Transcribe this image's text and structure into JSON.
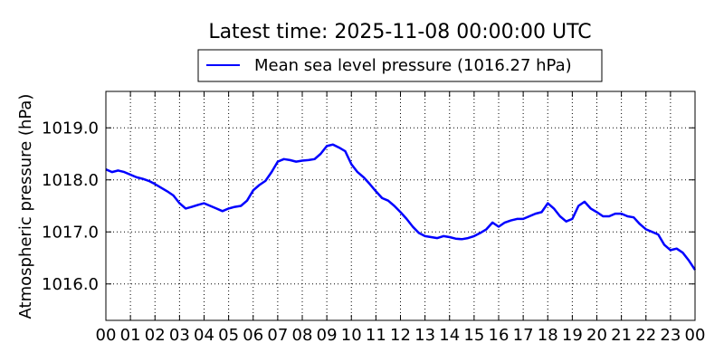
{
  "chart_data": {
    "type": "line",
    "title": "Latest time: 2025-11-08 00:00:00 UTC",
    "ylabel": "Atmospheric pressure (hPa)",
    "xlabel": "",
    "x_unit": "hour (UTC)",
    "xlim": [
      0,
      24
    ],
    "ylim": [
      1015.3,
      1019.7
    ],
    "grid": true,
    "grid_style": "dotted",
    "legend_position": "top-center",
    "x_ticks": [
      "00",
      "01",
      "02",
      "03",
      "04",
      "05",
      "06",
      "07",
      "08",
      "09",
      "10",
      "11",
      "12",
      "13",
      "14",
      "15",
      "16",
      "17",
      "18",
      "19",
      "20",
      "21",
      "22",
      "23",
      "00"
    ],
    "y_ticks": [
      {
        "value": 1016.0,
        "label": "1016.0"
      },
      {
        "value": 1017.0,
        "label": "1017.0"
      },
      {
        "value": 1018.0,
        "label": "1018.0"
      },
      {
        "value": 1019.0,
        "label": "1019.0"
      }
    ],
    "series": [
      {
        "name": "Mean sea level pressure (1016.27 hPa)",
        "color": "#0000ff",
        "x": [
          0,
          0.25,
          0.5,
          0.75,
          1,
          1.25,
          1.5,
          1.75,
          2,
          2.25,
          2.5,
          2.75,
          3,
          3.25,
          3.5,
          3.75,
          4,
          4.25,
          4.5,
          4.75,
          5,
          5.25,
          5.5,
          5.75,
          6,
          6.25,
          6.5,
          6.75,
          7,
          7.25,
          7.5,
          7.75,
          8,
          8.25,
          8.5,
          8.75,
          9,
          9.25,
          9.5,
          9.75,
          10,
          10.25,
          10.5,
          10.75,
          11,
          11.25,
          11.5,
          11.75,
          12,
          12.25,
          12.5,
          12.75,
          13,
          13.25,
          13.5,
          13.75,
          14,
          14.25,
          14.5,
          14.75,
          15,
          15.25,
          15.5,
          15.75,
          16,
          16.25,
          16.5,
          16.75,
          17,
          17.25,
          17.5,
          17.75,
          18,
          18.25,
          18.5,
          18.75,
          19,
          19.25,
          19.5,
          19.75,
          20,
          20.25,
          20.5,
          20.75,
          21,
          21.25,
          21.5,
          21.75,
          22,
          22.25,
          22.5,
          22.75,
          23,
          23.25,
          23.5,
          23.75,
          24
        ],
        "values": [
          1018.2,
          1018.15,
          1018.18,
          1018.15,
          1018.1,
          1018.05,
          1018.02,
          1017.98,
          1017.92,
          1017.85,
          1017.78,
          1017.7,
          1017.55,
          1017.45,
          1017.48,
          1017.52,
          1017.55,
          1017.5,
          1017.45,
          1017.4,
          1017.45,
          1017.48,
          1017.5,
          1017.6,
          1017.8,
          1017.9,
          1017.98,
          1018.15,
          1018.35,
          1018.4,
          1018.38,
          1018.35,
          1018.37,
          1018.38,
          1018.4,
          1018.5,
          1018.65,
          1018.68,
          1018.62,
          1018.55,
          1018.3,
          1018.15,
          1018.05,
          1017.92,
          1017.78,
          1017.65,
          1017.6,
          1017.5,
          1017.38,
          1017.25,
          1017.1,
          1016.98,
          1016.92,
          1016.9,
          1016.88,
          1016.92,
          1016.9,
          1016.87,
          1016.86,
          1016.88,
          1016.92,
          1016.98,
          1017.05,
          1017.18,
          1017.1,
          1017.18,
          1017.22,
          1017.25,
          1017.25,
          1017.3,
          1017.35,
          1017.38,
          1017.55,
          1017.45,
          1017.3,
          1017.2,
          1017.25,
          1017.5,
          1017.58,
          1017.45,
          1017.38,
          1017.3,
          1017.3,
          1017.35,
          1017.35,
          1017.3,
          1017.28,
          1017.15,
          1017.05,
          1017.0,
          1016.95,
          1016.75,
          1016.65,
          1016.68,
          1016.6,
          1016.45,
          1016.27
        ]
      }
    ]
  }
}
